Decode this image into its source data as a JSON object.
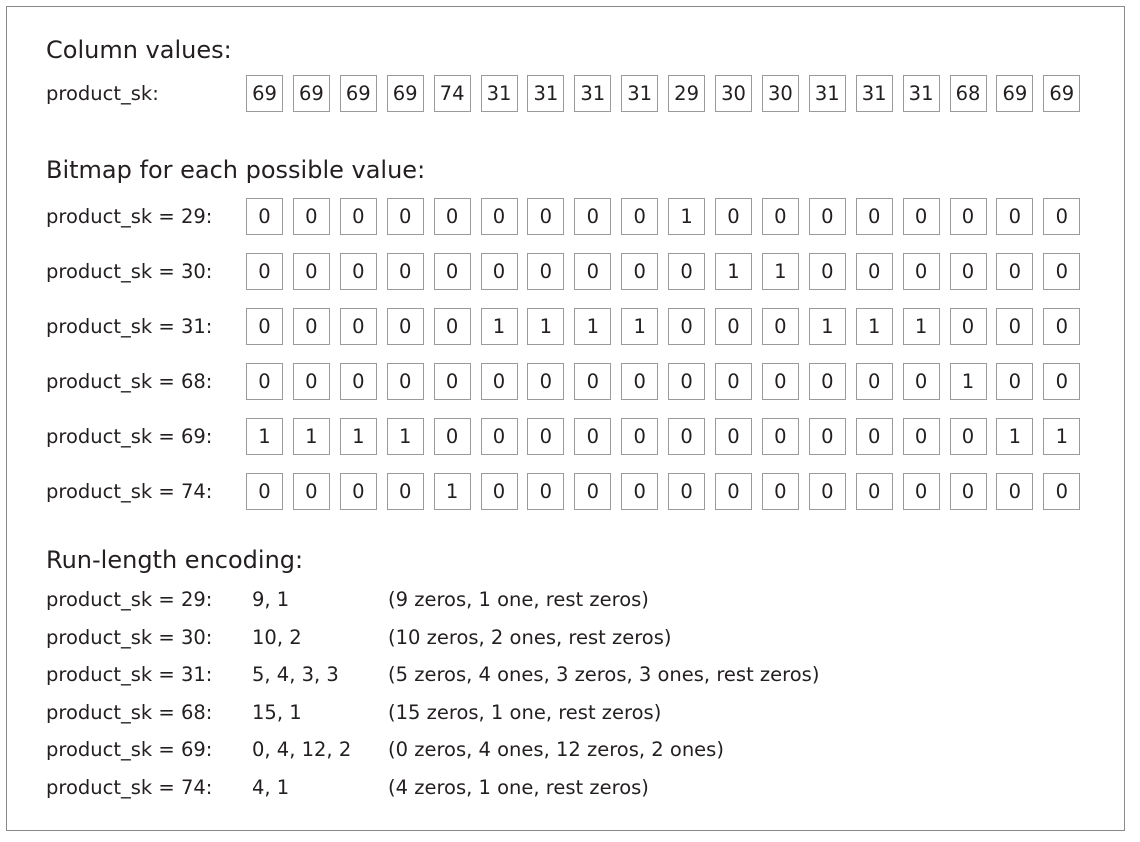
{
  "column_heading": "Column values:",
  "column_label": "product_sk:",
  "column_values": [
    "69",
    "69",
    "69",
    "69",
    "74",
    "31",
    "31",
    "31",
    "31",
    "29",
    "30",
    "30",
    "31",
    "31",
    "31",
    "68",
    "69",
    "69"
  ],
  "bitmap_heading": "Bitmap for each possible value:",
  "bitmaps": [
    {
      "label": "product_sk = 29:",
      "bits": [
        "0",
        "0",
        "0",
        "0",
        "0",
        "0",
        "0",
        "0",
        "0",
        "1",
        "0",
        "0",
        "0",
        "0",
        "0",
        "0",
        "0",
        "0"
      ]
    },
    {
      "label": "product_sk = 30:",
      "bits": [
        "0",
        "0",
        "0",
        "0",
        "0",
        "0",
        "0",
        "0",
        "0",
        "0",
        "1",
        "1",
        "0",
        "0",
        "0",
        "0",
        "0",
        "0"
      ]
    },
    {
      "label": "product_sk = 31:",
      "bits": [
        "0",
        "0",
        "0",
        "0",
        "0",
        "1",
        "1",
        "1",
        "1",
        "0",
        "0",
        "0",
        "1",
        "1",
        "1",
        "0",
        "0",
        "0"
      ]
    },
    {
      "label": "product_sk = 68:",
      "bits": [
        "0",
        "0",
        "0",
        "0",
        "0",
        "0",
        "0",
        "0",
        "0",
        "0",
        "0",
        "0",
        "0",
        "0",
        "0",
        "1",
        "0",
        "0"
      ]
    },
    {
      "label": "product_sk = 69:",
      "bits": [
        "1",
        "1",
        "1",
        "1",
        "0",
        "0",
        "0",
        "0",
        "0",
        "0",
        "0",
        "0",
        "0",
        "0",
        "0",
        "0",
        "1",
        "1"
      ]
    },
    {
      "label": "product_sk = 74:",
      "bits": [
        "0",
        "0",
        "0",
        "0",
        "1",
        "0",
        "0",
        "0",
        "0",
        "0",
        "0",
        "0",
        "0",
        "0",
        "0",
        "0",
        "0",
        "0"
      ]
    }
  ],
  "rle_heading": "Run-length encoding:",
  "rle": [
    {
      "label": "product_sk = 29:",
      "runs": "9, 1",
      "note": "(9 zeros, 1 one, rest zeros)"
    },
    {
      "label": "product_sk = 30:",
      "runs": "10, 2",
      "note": "(10 zeros, 2 ones, rest zeros)"
    },
    {
      "label": "product_sk = 31:",
      "runs": "5, 4, 3, 3",
      "note": "(5 zeros, 4 ones, 3 zeros, 3 ones, rest zeros)"
    },
    {
      "label": "product_sk = 68:",
      "runs": "15, 1",
      "note": "(15 zeros, 1 one, rest zeros)"
    },
    {
      "label": "product_sk = 69:",
      "runs": "0, 4, 12, 2",
      "note": "(0 zeros, 4 ones, 12 zeros, 2 ones)"
    },
    {
      "label": "product_sk = 74:",
      "runs": "4, 1",
      "note": "(4 zeros, 1 one, rest zeros)"
    }
  ]
}
